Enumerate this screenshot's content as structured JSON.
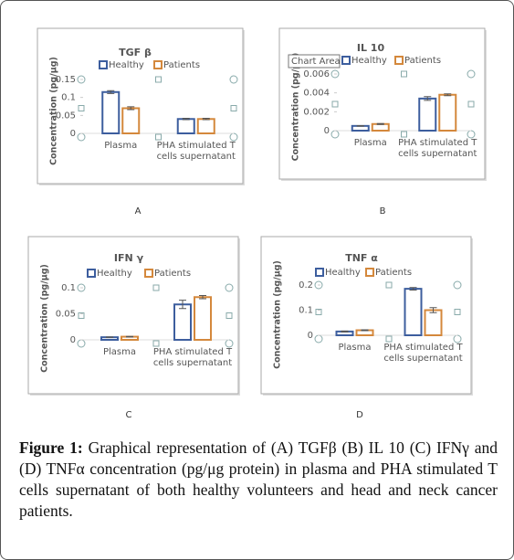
{
  "chart_data": [
    {
      "type": "bar",
      "title": "TGF β",
      "y_label": "Concentration (pg/µg)",
      "categories": [
        "Plasma",
        "PHA stimulated T cells supernatant"
      ],
      "series": [
        {
          "name": "Healthy",
          "color": "#3d5e9e",
          "values": [
            0.115,
            0.04
          ],
          "errors": [
            0.004,
            0.002
          ]
        },
        {
          "name": "Patients",
          "color": "#d4883c",
          "values": [
            0.07,
            0.04
          ],
          "errors": [
            0.004,
            0.002
          ]
        }
      ],
      "ylim": [
        0,
        0.15
      ],
      "yticks": [
        0,
        0.05,
        0.1,
        0.15
      ],
      "panel": "A"
    },
    {
      "type": "bar",
      "title": "IL 10",
      "y_label": "Concentration (pg/µg)",
      "tooltip": "Chart Area",
      "categories": [
        "Plasma",
        "PHA stimulated T cells supernatant"
      ],
      "series": [
        {
          "name": "Healthy",
          "color": "#3d5e9e",
          "values": [
            0.0005,
            0.0034
          ],
          "errors": [
            3e-05,
            0.0002
          ]
        },
        {
          "name": "Patients",
          "color": "#d4883c",
          "values": [
            0.0007,
            0.0038
          ],
          "errors": [
            5e-05,
            0.0001
          ]
        }
      ],
      "ylim": [
        0,
        0.006
      ],
      "yticks": [
        0,
        0.002,
        0.004,
        0.006
      ],
      "panel": "B"
    },
    {
      "type": "bar",
      "title": "IFN γ",
      "y_label": "Concentration (pg/µg)",
      "categories": [
        "Plasma",
        "PHA stimulated T cells supernatant"
      ],
      "series": [
        {
          "name": "Healthy",
          "color": "#3d5e9e",
          "values": [
            0.005,
            0.068
          ],
          "errors": [
            0.0005,
            0.008
          ]
        },
        {
          "name": "Patients",
          "color": "#d4883c",
          "values": [
            0.006,
            0.082
          ],
          "errors": [
            0.0005,
            0.003
          ]
        }
      ],
      "ylim": [
        0,
        0.1
      ],
      "yticks": [
        0,
        0.05,
        0.1
      ],
      "panel": "C"
    },
    {
      "type": "bar",
      "title": "TNF α",
      "y_label": "Concentration (pg/µg)",
      "categories": [
        "Plasma",
        "PHA stimulated T cells supernatant"
      ],
      "series": [
        {
          "name": "Healthy",
          "color": "#3d5e9e",
          "values": [
            0.015,
            0.185
          ],
          "errors": [
            0.002,
            0.005
          ]
        },
        {
          "name": "Patients",
          "color": "#d4883c",
          "values": [
            0.02,
            0.1
          ],
          "errors": [
            0.002,
            0.01
          ]
        }
      ],
      "ylim": [
        0,
        0.2
      ],
      "yticks": [
        0,
        0.1,
        0.2
      ],
      "panel": "D"
    }
  ],
  "caption": {
    "label": "Figure 1:",
    "text": "Graphical representation of (A) TGFβ (B) IL 10 (C) IFNγ and (D) TNFα concentration (pg/μg protein) in plasma and PHA stimulated T cells supernatant of both healthy volunteers and head and neck cancer patients."
  }
}
